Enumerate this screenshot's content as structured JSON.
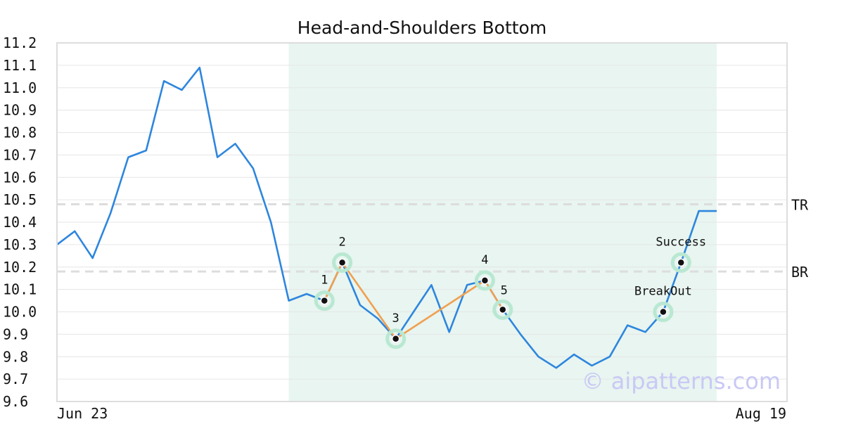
{
  "chart_data": {
    "type": "line",
    "title": "Head-and-Shoulders Bottom",
    "xlabel": "",
    "ylabel": "",
    "ylim": [
      9.6,
      11.2
    ],
    "yticks": [
      "9.6",
      "9.7",
      "9.8",
      "9.9",
      "10.0",
      "10.1",
      "10.2",
      "10.3",
      "10.4",
      "10.5",
      "10.6",
      "10.7",
      "10.8",
      "10.9",
      "11.0",
      "11.1",
      "11.2"
    ],
    "x_start_label": "Jun 23",
    "x_end_label": "Aug 19",
    "grid": true,
    "colors": {
      "price": "#2e86de",
      "pattern": "#f0a050",
      "highlight": "#e8f5f0",
      "marker_halo": "#b9e8d2",
      "reference": "#dddddd"
    },
    "series": [
      {
        "values": [
          10.3,
          10.36,
          10.24,
          10.44,
          10.69,
          10.72,
          11.03,
          10.99,
          11.09,
          10.69,
          10.75,
          10.64,
          10.4,
          10.05,
          10.08,
          10.05,
          10.22,
          10.03,
          9.97,
          9.88,
          10.0,
          10.12,
          9.91,
          10.12,
          10.14,
          10.01,
          9.9,
          9.8,
          9.75,
          9.81,
          9.76,
          9.8,
          9.94,
          9.91,
          10.0,
          10.22,
          10.45,
          10.45
        ]
      }
    ],
    "highlight_region": {
      "start_index": 13,
      "end_index": 37
    },
    "pattern_points": [
      {
        "label": "1",
        "index": 15,
        "value": 10.05
      },
      {
        "label": "2",
        "index": 16,
        "value": 10.22
      },
      {
        "label": "3",
        "index": 19,
        "value": 9.88
      },
      {
        "label": "4",
        "index": 24,
        "value": 10.14
      },
      {
        "label": "5",
        "index": 25,
        "value": 10.01
      }
    ],
    "event_points": [
      {
        "label": "BreakOut",
        "index": 34,
        "value": 10.0
      },
      {
        "label": "Success",
        "index": 35,
        "value": 10.22
      }
    ],
    "reference_lines": [
      {
        "label": "TR",
        "value": 10.48
      },
      {
        "label": "BR",
        "value": 10.18
      }
    ],
    "watermark": "© aipatterns.com"
  }
}
